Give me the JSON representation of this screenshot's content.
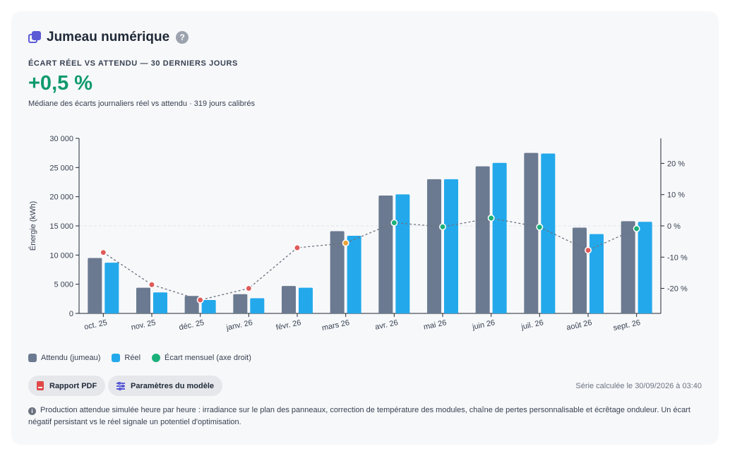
{
  "header": {
    "title": "Jumeau numérique",
    "help": "?"
  },
  "kpi": {
    "label": "ÉCART RÉEL VS ATTENDU — 30 DERNIERS JOURS",
    "value": "+0,5 %",
    "subtitle": "Médiane des écarts journaliers réel vs attendu · 319 jours calibrés"
  },
  "chart_data": {
    "type": "bar",
    "categories": [
      "oct. 25",
      "nov. 25",
      "déc. 25",
      "janv. 26",
      "févr. 26",
      "mars 26",
      "avr. 26",
      "mai 26",
      "juin 26",
      "juil. 26",
      "août 26",
      "sept. 26"
    ],
    "series": [
      {
        "name": "Attendu (jumeau)",
        "type": "bar",
        "axis": "left",
        "color": "#6b7a90",
        "values": [
          9500,
          4400,
          3000,
          3300,
          4700,
          14100,
          20200,
          23000,
          25200,
          27500,
          14700,
          15800
        ]
      },
      {
        "name": "Réel",
        "type": "bar",
        "axis": "left",
        "color": "#23a9eb",
        "values": [
          8700,
          3600,
          2300,
          2600,
          4400,
          13300,
          20400,
          23000,
          25800,
          27400,
          13600,
          15700
        ]
      },
      {
        "name": "Écart mensuel (axe droit)",
        "type": "line",
        "axis": "right",
        "color": "#1bb07a",
        "values": [
          -8.5,
          -18.8,
          -23.7,
          -20.0,
          -7.0,
          -5.5,
          1.0,
          -0.3,
          2.5,
          -0.4,
          -7.8,
          -0.9
        ]
      }
    ],
    "point_colors": [
      "#e05a5a",
      "#e05a5a",
      "#e05a5a",
      "#e05a5a",
      "#e05a5a",
      "#e9a23b",
      "#1bb07a",
      "#1bb07a",
      "#1bb07a",
      "#1bb07a",
      "#e05a5a",
      "#1bb07a"
    ],
    "ylabel": "Énergie (kWh)",
    "ylim": [
      0,
      30000
    ],
    "yticks": [
      0,
      5000,
      10000,
      15000,
      20000,
      25000,
      30000
    ],
    "ytick_labels": [
      "0",
      "5 000",
      "10 000",
      "15 000",
      "20 000",
      "25 000",
      "30 000"
    ],
    "y2lim": [
      -28,
      28
    ],
    "y2ticks": [
      -20,
      -10,
      0,
      10,
      20
    ],
    "y2tick_labels": [
      "-20 %",
      "-10 %",
      "0 %",
      "10 %",
      "20 %"
    ],
    "legend_position": "bottom-left",
    "grid": false
  },
  "actions": {
    "pdf_label": "Rapport PDF",
    "params_label": "Paramètres du modèle"
  },
  "footer": {
    "timestamp": "Série calculée le 30/09/2026 à 03:40",
    "note": "Production attendue simulée heure par heure : irradiance sur le plan des panneaux, correction de température des modules, chaîne de pertes personnalisable et écrêtage onduleur. Un écart négatif persistant vs le réel signale un potentiel d'optimisation."
  }
}
